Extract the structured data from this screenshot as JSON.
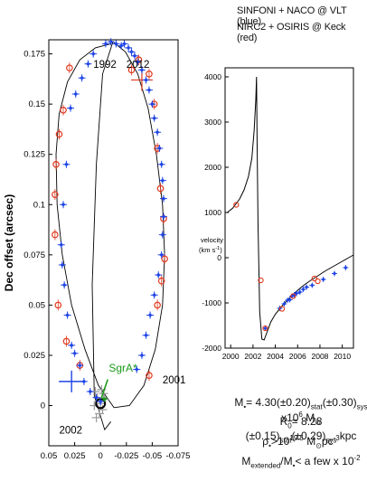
{
  "header": {
    "line1": "SINFONI + NACO @ VLT (blue)",
    "line2": "NIRC2 + OSIRIS @ Keck (red)"
  },
  "colors": {
    "vlt": "#1f45e6",
    "keck": "#e0381e",
    "sgr": "#1a9a1a",
    "curve": "#000000",
    "gray": "#999999"
  },
  "chart_data": [
    {
      "type": "scatter",
      "name": "orbit",
      "xlabel": "",
      "ylabel": "Dec offset (arcsec)",
      "xlim": [
        0.05,
        -0.075
      ],
      "ylim": [
        -0.02,
        0.182
      ],
      "xticks": [
        0.05,
        0.025,
        0,
        -0.025,
        -0.05,
        -0.075
      ],
      "xtick_labels": [
        "0.05",
        "0.025",
        "0",
        "-0.025",
        "-0.05",
        "-0.075"
      ],
      "yticks": [
        0,
        0.025,
        0.05,
        0.075,
        0.1,
        0.125,
        0.15,
        0.175
      ],
      "ytick_labels": [
        "0",
        "0.025",
        "0.05",
        "0.075",
        "0.1",
        "0.125",
        "0.15",
        "0.175"
      ],
      "annotations": [
        {
          "text": "1992",
          "x": 0.007,
          "y": 0.168
        },
        {
          "text": "2012",
          "x": -0.025,
          "y": 0.168
        },
        {
          "text": "2001",
          "x": -0.06,
          "y": 0.011
        },
        {
          "text": "2002",
          "x": 0.04,
          "y": -0.014
        },
        {
          "text": "SgrA*",
          "x": -0.008,
          "y": 0.017
        }
      ],
      "orbit_curve": {
        "x": [
          -0.01,
          0.005,
          0.02,
          0.032,
          0.04,
          0.043,
          0.042,
          0.037,
          0.028,
          0.015,
          0.002,
          -0.013,
          -0.028,
          -0.042,
          -0.053,
          -0.06,
          -0.062,
          -0.06,
          -0.054,
          -0.046,
          -0.036,
          -0.024,
          -0.012,
          -0.002,
          0.004,
          0.008,
          0.006,
          -0.004,
          -0.01
        ],
        "y": [
          0.18,
          0.178,
          0.172,
          0.161,
          0.145,
          0.125,
          0.1,
          0.075,
          0.05,
          0.028,
          0.01,
          -0.001,
          0.0,
          0.01,
          0.028,
          0.05,
          0.075,
          0.1,
          0.125,
          0.148,
          0.165,
          0.176,
          0.181,
          0.165,
          0.12,
          0.06,
          0.005,
          -0.012,
          -0.008
        ]
      },
      "series": [
        {
          "name": "VLT",
          "x": [
            -0.005,
            -0.01,
            -0.015,
            -0.02,
            -0.023,
            -0.027,
            -0.03,
            -0.033,
            -0.036,
            -0.04,
            -0.044,
            -0.047,
            -0.05,
            -0.052,
            -0.055,
            -0.057,
            -0.059,
            -0.06,
            -0.061,
            -0.061,
            -0.06,
            -0.059,
            -0.056,
            -0.052,
            -0.048,
            -0.044,
            -0.04,
            -0.035,
            0.007,
            0.012,
            0.018,
            0.024,
            0.029,
            0.033,
            0.036,
            0.038,
            0.037,
            0.035,
            0.032,
            0.028,
            0.025,
            0.02,
            0.016,
            0.01,
            0.004,
            0.0
          ],
          "y": [
            0.18,
            0.181,
            0.18,
            0.179,
            0.18,
            0.178,
            0.176,
            0.174,
            0.171,
            0.167,
            0.162,
            0.157,
            0.15,
            0.143,
            0.136,
            0.128,
            0.12,
            0.112,
            0.103,
            0.094,
            0.085,
            0.075,
            0.065,
            0.055,
            0.045,
            0.035,
            0.025,
            0.018,
            0.175,
            0.17,
            0.163,
            0.155,
            0.148,
            0.12,
            0.1,
            0.08,
            0.07,
            0.06,
            0.045,
            0.03,
            0.026,
            0.02,
            0.012,
            0.007,
            0.004,
            0.002
          ]
        },
        {
          "name": "Keck",
          "x": [
            0.03,
            0.036,
            0.04,
            0.043,
            0.044,
            0.044,
            0.041,
            0.033,
            0.02,
            -0.047,
            -0.055,
            -0.059,
            -0.062,
            -0.061,
            -0.058,
            -0.055,
            -0.052,
            -0.047,
            -0.037,
            -0.03
          ],
          "y": [
            0.168,
            0.147,
            0.135,
            0.12,
            0.105,
            0.085,
            0.05,
            0.032,
            0.02,
            0.015,
            0.05,
            0.062,
            0.073,
            0.093,
            0.108,
            0.128,
            0.15,
            0.165,
            0.172,
            0.167
          ]
        },
        {
          "name": "SgrA* cluster",
          "x": [
            0.0,
            0.003,
            -0.002,
            0.005,
            -0.004,
            0.001,
            0.006,
            -0.001,
            0.004,
            -0.003
          ],
          "y": [
            0.001,
            0.004,
            -0.002,
            0.007,
            0.003,
            -0.004,
            0.0,
            0.008,
            -0.006,
            0.006
          ]
        }
      ]
    },
    {
      "type": "line",
      "name": "velocity",
      "xlabel": "",
      "ylabel": "velocity (km s-1)",
      "ylabel_lines": [
        "velocity",
        "(km s",
        "-1",
        ")"
      ],
      "xlim": [
        1999.5,
        2011
      ],
      "ylim": [
        -2000,
        4200
      ],
      "xticks": [
        2000,
        2002,
        2004,
        2006,
        2008,
        2010
      ],
      "xtick_labels": [
        "2000",
        "2002",
        "2004",
        "2006",
        "2008",
        "2010"
      ],
      "yticks": [
        -2000,
        -1000,
        0,
        1000,
        2000,
        3000,
        4000
      ],
      "ytick_labels": [
        "-2000",
        "-1000",
        "0",
        "1000",
        "2000",
        "3000",
        "4000"
      ],
      "model_curve": {
        "x": [
          1999.7,
          2000.2,
          2000.8,
          2001.2,
          2001.6,
          2001.9,
          2002.1,
          2002.25,
          2002.32,
          2002.36,
          2002.45,
          2002.6,
          2002.8,
          2003.0,
          2003.3,
          2003.6,
          2004.0,
          2004.5,
          2005.0,
          2005.5,
          2006.0,
          2006.5,
          2007.0,
          2007.5,
          2008.0,
          2008.5,
          2009.0,
          2009.5,
          2010.0,
          2010.5,
          2011.0
        ],
        "y": [
          1000,
          1100,
          1300,
          1500,
          1800,
          2200,
          2800,
          3500,
          4000,
          2800,
          800,
          -1200,
          -1800,
          -1820,
          -1620,
          -1420,
          -1250,
          -1100,
          -960,
          -830,
          -720,
          -620,
          -530,
          -450,
          -370,
          -290,
          -220,
          -150,
          -80,
          -10,
          60
        ]
      },
      "series": [
        {
          "name": "VLT",
          "x": [
            2003.1,
            2004.4,
            2004.8,
            2005.1,
            2005.3,
            2005.5,
            2005.7,
            2005.9,
            2006.2,
            2006.5,
            2006.8,
            2007.3,
            2008.3,
            2009.3,
            2010.3
          ],
          "y": [
            -1560,
            -1120,
            -1020,
            -940,
            -930,
            -850,
            -820,
            -790,
            -760,
            -700,
            -650,
            -610,
            -480,
            -350,
            -220
          ]
        },
        {
          "name": "Keck",
          "x": [
            2000.5,
            2002.7,
            2003.1,
            2004.6,
            2005.6,
            2007.5,
            2007.8
          ],
          "y": [
            1170,
            -500,
            -1560,
            -1130,
            -850,
            -460,
            -520
          ]
        }
      ]
    }
  ],
  "equations": {
    "m_a": "M",
    "m_b": "•",
    "m_c": "= 4.30(±0.20)",
    "m_d": "stat",
    "m_e": "(±0.30)",
    "m_f": "sys",
    "m_g": " x10",
    "m_h": "6",
    "m_i": " M",
    "m_j": "⊙",
    "r_a": "R",
    "r_b": "0",
    "r_c": "= 8.28 (±0.15)",
    "r_d": "stat",
    "r_e": "(±0.29)",
    "r_f": "sys",
    "r_g": " kpc",
    "p_a": "ρ",
    "p_b": "•",
    "p_c": ">10",
    "p_d": "19.5",
    "p_e": " M",
    "p_f": "⊙",
    "p_g": "pc",
    "p_h": "-3",
    "e_a": "M",
    "e_b": "extended",
    "e_c": "/M",
    "e_d": "•",
    "e_e": "< a few x 10",
    "e_f": "-2"
  }
}
